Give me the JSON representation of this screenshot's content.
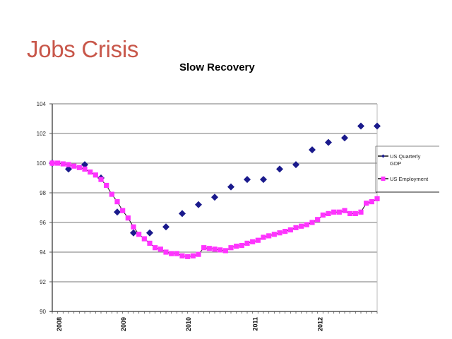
{
  "slide": {
    "title": "Jobs Crisis"
  },
  "chart_data": {
    "type": "line",
    "title": "Slow Recovery",
    "xlabel": "",
    "ylabel": "",
    "ylim": [
      90,
      104
    ],
    "yticks": [
      "104",
      "102",
      "100",
      "98",
      "96",
      "94",
      "92",
      "90"
    ],
    "ytick_values": [
      104,
      102,
      100,
      98,
      96,
      94,
      92,
      90
    ],
    "xlim_months": [
      0,
      60
    ],
    "xticks": [
      "2008",
      "2009",
      "2010",
      "2011",
      "2012"
    ],
    "xtick_months": [
      1.3,
      13.2,
      25.2,
      37.5,
      49.5
    ],
    "grid": true,
    "legend": {
      "placement": "right",
      "entries": [
        {
          "label_lines": [
            "US Quarterly",
            "GDP"
          ],
          "color": "#1a1a8c",
          "marker": "diamond"
        },
        {
          "label_lines": [
            "US Employment"
          ],
          "color": "#ff33ff",
          "marker": "square"
        }
      ]
    },
    "series": [
      {
        "name": "US Quarterly GDP",
        "color": "#1a1a8c",
        "marker": "diamond",
        "line": false,
        "x": [
          0,
          3,
          6,
          9,
          12,
          15,
          18,
          21,
          24,
          27,
          30,
          33,
          36,
          39,
          42,
          45,
          48,
          51,
          54,
          57,
          60
        ],
        "y": [
          100.0,
          99.6,
          99.9,
          99.0,
          96.7,
          95.3,
          95.3,
          95.7,
          96.6,
          97.2,
          97.7,
          98.4,
          98.9,
          98.9,
          99.6,
          99.9,
          100.9,
          101.4,
          101.7,
          102.5,
          102.5
        ]
      },
      {
        "name": "US Employment",
        "color": "#ff33ff",
        "marker": "square",
        "line": true,
        "x": [
          0,
          1,
          2,
          3,
          4,
          5,
          6,
          7,
          8,
          9,
          10,
          11,
          12,
          13,
          14,
          15,
          16,
          17,
          18,
          19,
          20,
          21,
          22,
          23,
          24,
          25,
          26,
          27,
          28,
          29,
          30,
          31,
          32,
          33,
          34,
          35,
          36,
          37,
          38,
          39,
          40,
          41,
          42,
          43,
          44,
          45,
          46,
          47,
          48,
          49,
          50,
          51,
          52,
          53,
          54,
          55,
          56,
          57,
          58,
          59,
          60
        ],
        "y": [
          100.0,
          100.0,
          99.95,
          99.9,
          99.8,
          99.7,
          99.6,
          99.4,
          99.2,
          98.9,
          98.5,
          97.9,
          97.4,
          96.8,
          96.3,
          95.7,
          95.2,
          94.9,
          94.6,
          94.3,
          94.2,
          94.0,
          93.9,
          93.9,
          93.75,
          93.7,
          93.75,
          93.85,
          94.3,
          94.25,
          94.2,
          94.15,
          94.1,
          94.3,
          94.4,
          94.45,
          94.6,
          94.7,
          94.8,
          95.0,
          95.1,
          95.2,
          95.3,
          95.4,
          95.5,
          95.65,
          95.75,
          95.85,
          96.0,
          96.2,
          96.5,
          96.6,
          96.7,
          96.7,
          96.8,
          96.6,
          96.6,
          96.7,
          97.3,
          97.4,
          97.6
        ]
      }
    ]
  }
}
